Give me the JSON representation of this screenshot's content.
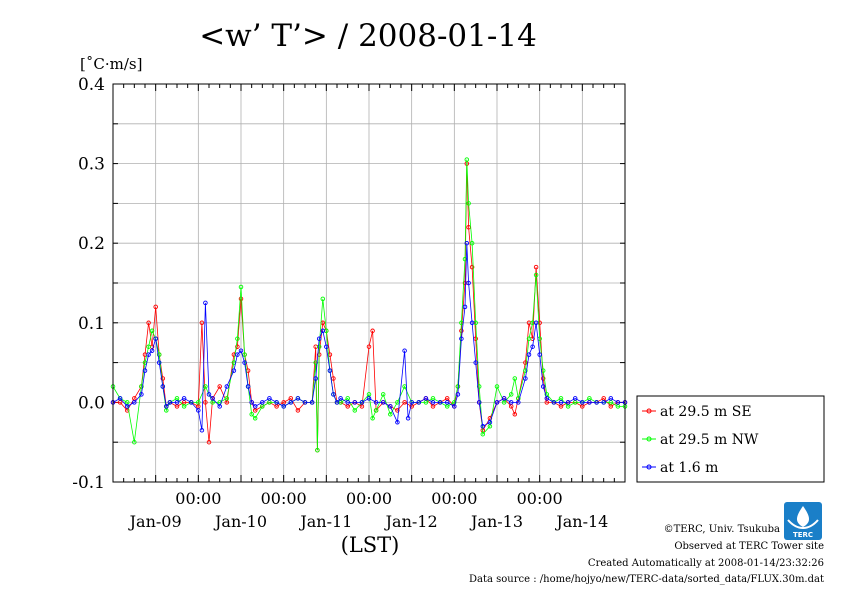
{
  "chart_data": {
    "type": "line",
    "title": "<w’ T’> / 2008-01-14",
    "unit_label": "[˚C·m/s]",
    "xlabel": "(LST)",
    "ylim": [
      -0.1,
      0.4
    ],
    "yticks": [
      "0.4",
      "0.3",
      "0.2",
      "0.1",
      "0.0",
      "-0.1"
    ],
    "ytick_values": [
      0.4,
      0.3,
      0.2,
      0.1,
      0.0,
      -0.1
    ],
    "xlim_hours": [
      0,
      144
    ],
    "x_time_ticks": [
      "00:00",
      "00:00",
      "00:00",
      "00:00",
      "00:00"
    ],
    "x_date_labels": [
      "Jan-09",
      "Jan-10",
      "Jan-11",
      "Jan-12",
      "Jan-13",
      "Jan-14"
    ],
    "grid": true,
    "legend_position": "right",
    "series": [
      {
        "name": "at 29.5 m SE",
        "color": "#ff0000",
        "points": [
          [
            0,
            0.0
          ],
          [
            2,
            0.0
          ],
          [
            4,
            -0.01
          ],
          [
            6,
            0.005
          ],
          [
            8,
            0.02
          ],
          [
            9,
            0.06
          ],
          [
            10,
            0.1
          ],
          [
            11,
            0.07
          ],
          [
            12,
            0.12
          ],
          [
            13,
            0.06
          ],
          [
            14,
            0.03
          ],
          [
            15,
            -0.005
          ],
          [
            16,
            0.0
          ],
          [
            18,
            -0.005
          ],
          [
            20,
            0.0
          ],
          [
            22,
            0.0
          ],
          [
            24,
            -0.005
          ],
          [
            25,
            0.1
          ],
          [
            26,
            0.0
          ],
          [
            27,
            -0.05
          ],
          [
            28,
            0.005
          ],
          [
            30,
            0.02
          ],
          [
            32,
            0.0
          ],
          [
            34,
            0.06
          ],
          [
            35,
            0.07
          ],
          [
            36,
            0.13
          ],
          [
            37,
            0.06
          ],
          [
            38,
            0.04
          ],
          [
            39,
            0.0
          ],
          [
            40,
            -0.01
          ],
          [
            42,
            -0.005
          ],
          [
            44,
            0.0
          ],
          [
            46,
            -0.005
          ],
          [
            48,
            0.0
          ],
          [
            50,
            0.005
          ],
          [
            52,
            -0.01
          ],
          [
            54,
            0.0
          ],
          [
            56,
            0.0
          ],
          [
            57,
            0.07
          ],
          [
            57.5,
            -0.06
          ],
          [
            58,
            0.06
          ],
          [
            59,
            0.1
          ],
          [
            60,
            0.09
          ],
          [
            61,
            0.06
          ],
          [
            62,
            0.03
          ],
          [
            63,
            0.0
          ],
          [
            64,
            0.0
          ],
          [
            66,
            -0.005
          ],
          [
            68,
            0.0
          ],
          [
            70,
            -0.005
          ],
          [
            72,
            0.07
          ],
          [
            73,
            0.09
          ],
          [
            74,
            -0.01
          ],
          [
            76,
            0.0
          ],
          [
            78,
            -0.005
          ],
          [
            80,
            -0.01
          ],
          [
            82,
            0.0
          ],
          [
            84,
            -0.005
          ],
          [
            86,
            0.0
          ],
          [
            88,
            0.005
          ],
          [
            90,
            -0.005
          ],
          [
            92,
            0.0
          ],
          [
            94,
            0.005
          ],
          [
            96,
            -0.005
          ],
          [
            97,
            0.02
          ],
          [
            98,
            0.09
          ],
          [
            99,
            0.15
          ],
          [
            99.5,
            0.3
          ],
          [
            100,
            0.22
          ],
          [
            101,
            0.17
          ],
          [
            102,
            0.08
          ],
          [
            103,
            0.0
          ],
          [
            104,
            -0.035
          ],
          [
            106,
            -0.02
          ],
          [
            108,
            0.0
          ],
          [
            110,
            0.005
          ],
          [
            112,
            -0.005
          ],
          [
            113,
            -0.015
          ],
          [
            114,
            0.005
          ],
          [
            116,
            0.05
          ],
          [
            117,
            0.1
          ],
          [
            118,
            0.08
          ],
          [
            119,
            0.17
          ],
          [
            120,
            0.1
          ],
          [
            121,
            0.03
          ],
          [
            122,
            0.0
          ],
          [
            124,
            0.0
          ],
          [
            126,
            -0.005
          ],
          [
            128,
            0.0
          ],
          [
            130,
            0.0
          ],
          [
            132,
            -0.005
          ],
          [
            134,
            0.0
          ],
          [
            136,
            0.0
          ],
          [
            138,
            0.005
          ],
          [
            140,
            -0.005
          ],
          [
            142,
            0.0
          ],
          [
            144,
            0.0
          ]
        ]
      },
      {
        "name": "at 29.5 m NW",
        "color": "#00ff00",
        "points": [
          [
            0,
            0.02
          ],
          [
            2,
            0.005
          ],
          [
            4,
            0.0
          ],
          [
            6,
            -0.05
          ],
          [
            8,
            0.02
          ],
          [
            9,
            0.05
          ],
          [
            10,
            0.07
          ],
          [
            11,
            0.09
          ],
          [
            12,
            0.08
          ],
          [
            13,
            0.06
          ],
          [
            14,
            0.02
          ],
          [
            15,
            -0.01
          ],
          [
            16,
            0.0
          ],
          [
            18,
            0.005
          ],
          [
            20,
            -0.005
          ],
          [
            22,
            0.0
          ],
          [
            24,
            0.0
          ],
          [
            26,
            0.02
          ],
          [
            28,
            0.0
          ],
          [
            30,
            0.0
          ],
          [
            32,
            0.005
          ],
          [
            34,
            0.05
          ],
          [
            35,
            0.08
          ],
          [
            36,
            0.145
          ],
          [
            37,
            0.06
          ],
          [
            38,
            0.02
          ],
          [
            39,
            -0.015
          ],
          [
            40,
            -0.02
          ],
          [
            42,
            -0.005
          ],
          [
            44,
            0.0
          ],
          [
            46,
            0.0
          ],
          [
            48,
            -0.005
          ],
          [
            50,
            0.0
          ],
          [
            52,
            0.005
          ],
          [
            54,
            0.0
          ],
          [
            56,
            0.0
          ],
          [
            57,
            0.05
          ],
          [
            57.5,
            -0.06
          ],
          [
            58,
            0.07
          ],
          [
            59,
            0.13
          ],
          [
            60,
            0.09
          ],
          [
            61,
            0.04
          ],
          [
            62,
            0.01
          ],
          [
            63,
            0.0
          ],
          [
            64,
            0.0
          ],
          [
            66,
            0.005
          ],
          [
            68,
            -0.01
          ],
          [
            70,
            0.0
          ],
          [
            72,
            0.01
          ],
          [
            73,
            -0.02
          ],
          [
            74,
            -0.01
          ],
          [
            76,
            0.01
          ],
          [
            78,
            -0.015
          ],
          [
            80,
            0.0
          ],
          [
            82,
            0.02
          ],
          [
            84,
            0.0
          ],
          [
            86,
            0.0
          ],
          [
            88,
            0.0
          ],
          [
            90,
            0.005
          ],
          [
            92,
            0.0
          ],
          [
            94,
            -0.005
          ],
          [
            96,
            0.0
          ],
          [
            97,
            0.02
          ],
          [
            98,
            0.1
          ],
          [
            99,
            0.18
          ],
          [
            99.5,
            0.305
          ],
          [
            100,
            0.25
          ],
          [
            101,
            0.2
          ],
          [
            102,
            0.1
          ],
          [
            103,
            0.02
          ],
          [
            104,
            -0.04
          ],
          [
            106,
            -0.03
          ],
          [
            108,
            0.02
          ],
          [
            110,
            0.0
          ],
          [
            112,
            0.01
          ],
          [
            113,
            0.03
          ],
          [
            114,
            0.005
          ],
          [
            116,
            0.04
          ],
          [
            117,
            0.08
          ],
          [
            118,
            0.1
          ],
          [
            119,
            0.16
          ],
          [
            120,
            0.08
          ],
          [
            121,
            0.04
          ],
          [
            122,
            0.01
          ],
          [
            124,
            0.0
          ],
          [
            126,
            0.005
          ],
          [
            128,
            -0.005
          ],
          [
            130,
            0.0
          ],
          [
            132,
            0.0
          ],
          [
            134,
            0.005
          ],
          [
            136,
            0.0
          ],
          [
            138,
            0.0
          ],
          [
            140,
            0.0
          ],
          [
            142,
            -0.005
          ],
          [
            144,
            -0.005
          ]
        ]
      },
      {
        "name": "at 1.6 m",
        "color": "#0000ff",
        "points": [
          [
            0,
            0.0
          ],
          [
            2,
            0.005
          ],
          [
            4,
            -0.005
          ],
          [
            6,
            0.0
          ],
          [
            8,
            0.01
          ],
          [
            9,
            0.04
          ],
          [
            10,
            0.06
          ],
          [
            11,
            0.065
          ],
          [
            12,
            0.08
          ],
          [
            13,
            0.05
          ],
          [
            14,
            0.02
          ],
          [
            15,
            -0.005
          ],
          [
            16,
            0.0
          ],
          [
            18,
            0.0
          ],
          [
            20,
            0.005
          ],
          [
            22,
            0.0
          ],
          [
            24,
            -0.01
          ],
          [
            25,
            -0.035
          ],
          [
            26,
            0.125
          ],
          [
            27,
            0.01
          ],
          [
            28,
            0.005
          ],
          [
            30,
            -0.005
          ],
          [
            32,
            0.02
          ],
          [
            34,
            0.04
          ],
          [
            35,
            0.06
          ],
          [
            36,
            0.065
          ],
          [
            37,
            0.05
          ],
          [
            38,
            0.02
          ],
          [
            39,
            0.0
          ],
          [
            40,
            -0.005
          ],
          [
            42,
            0.0
          ],
          [
            44,
            0.005
          ],
          [
            46,
            0.0
          ],
          [
            48,
            -0.005
          ],
          [
            50,
            0.0
          ],
          [
            52,
            0.005
          ],
          [
            54,
            0.0
          ],
          [
            56,
            0.0
          ],
          [
            57,
            0.03
          ],
          [
            58,
            0.08
          ],
          [
            59,
            0.09
          ],
          [
            60,
            0.07
          ],
          [
            61,
            0.04
          ],
          [
            62,
            0.01
          ],
          [
            63,
            0.0
          ],
          [
            64,
            0.005
          ],
          [
            66,
            0.0
          ],
          [
            68,
            0.0
          ],
          [
            70,
            0.0
          ],
          [
            72,
            0.005
          ],
          [
            74,
            0.0
          ],
          [
            76,
            0.0
          ],
          [
            78,
            -0.005
          ],
          [
            80,
            -0.025
          ],
          [
            82,
            0.065
          ],
          [
            83,
            -0.02
          ],
          [
            84,
            0.0
          ],
          [
            86,
            0.0
          ],
          [
            88,
            0.005
          ],
          [
            90,
            0.0
          ],
          [
            92,
            0.0
          ],
          [
            94,
            0.0
          ],
          [
            96,
            -0.005
          ],
          [
            97,
            0.01
          ],
          [
            98,
            0.08
          ],
          [
            99,
            0.12
          ],
          [
            99.5,
            0.2
          ],
          [
            100,
            0.15
          ],
          [
            101,
            0.1
          ],
          [
            102,
            0.05
          ],
          [
            103,
            0.0
          ],
          [
            104,
            -0.03
          ],
          [
            106,
            -0.025
          ],
          [
            108,
            0.0
          ],
          [
            110,
            0.005
          ],
          [
            112,
            0.0
          ],
          [
            114,
            0.0
          ],
          [
            116,
            0.03
          ],
          [
            117,
            0.06
          ],
          [
            118,
            0.07
          ],
          [
            119,
            0.1
          ],
          [
            120,
            0.06
          ],
          [
            121,
            0.02
          ],
          [
            122,
            0.005
          ],
          [
            124,
            0.0
          ],
          [
            126,
            0.0
          ],
          [
            128,
            0.0
          ],
          [
            130,
            0.005
          ],
          [
            132,
            0.0
          ],
          [
            134,
            0.0
          ],
          [
            136,
            0.0
          ],
          [
            138,
            0.0
          ],
          [
            140,
            0.005
          ],
          [
            142,
            0.0
          ],
          [
            144,
            0.0
          ]
        ]
      }
    ]
  },
  "credits": {
    "copyright": "©TERC, Univ. Tsukuba",
    "observed": "Observed at TERC Tower site",
    "created": "Created Automatically at 2008-01-14/23:32:26",
    "source": "Data source : /home/hojyo/new/TERC-data/sorted_data/FLUX.30m.dat",
    "logo_text": "TERC"
  }
}
